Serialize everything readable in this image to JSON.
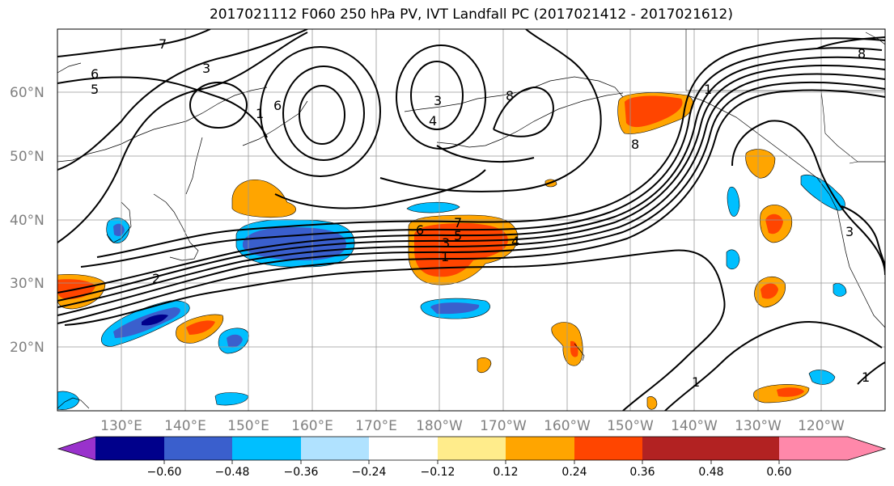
{
  "title": "2017021112 F060 250 hPa PV, IVT Landfall PC (2017021412 - 2017021612)",
  "lat_labels": [
    "60°N",
    "50°N",
    "40°N",
    "30°N",
    "20°N"
  ],
  "lon_labels": [
    "130°E",
    "140°E",
    "150°E",
    "160°E",
    "170°E",
    "180°W",
    "170°W",
    "160°W",
    "150°W",
    "140°W",
    "130°W",
    "120°W"
  ],
  "colorbar": {
    "tick_labels": [
      "−0.60",
      "−0.48",
      "−0.36",
      "−0.24",
      "−0.12",
      "0.12",
      "0.24",
      "0.36",
      "0.48",
      "0.60"
    ],
    "colors": [
      "#9932CC",
      "#00008B",
      "#3A5FCD",
      "#00BFFF",
      "#B0E2FF",
      "#FFFFFF",
      "#FFEC8B",
      "#FFA500",
      "#FF4500",
      "#B22222",
      "#FF88AA"
    ]
  },
  "contour_labels": [
    "7",
    "6",
    "5",
    "3",
    "2",
    "1",
    "3",
    "4",
    "8",
    "7",
    "6",
    "5",
    "4",
    "3",
    "1",
    "8",
    "1",
    "1",
    "1",
    "3",
    "8",
    "6"
  ]
}
